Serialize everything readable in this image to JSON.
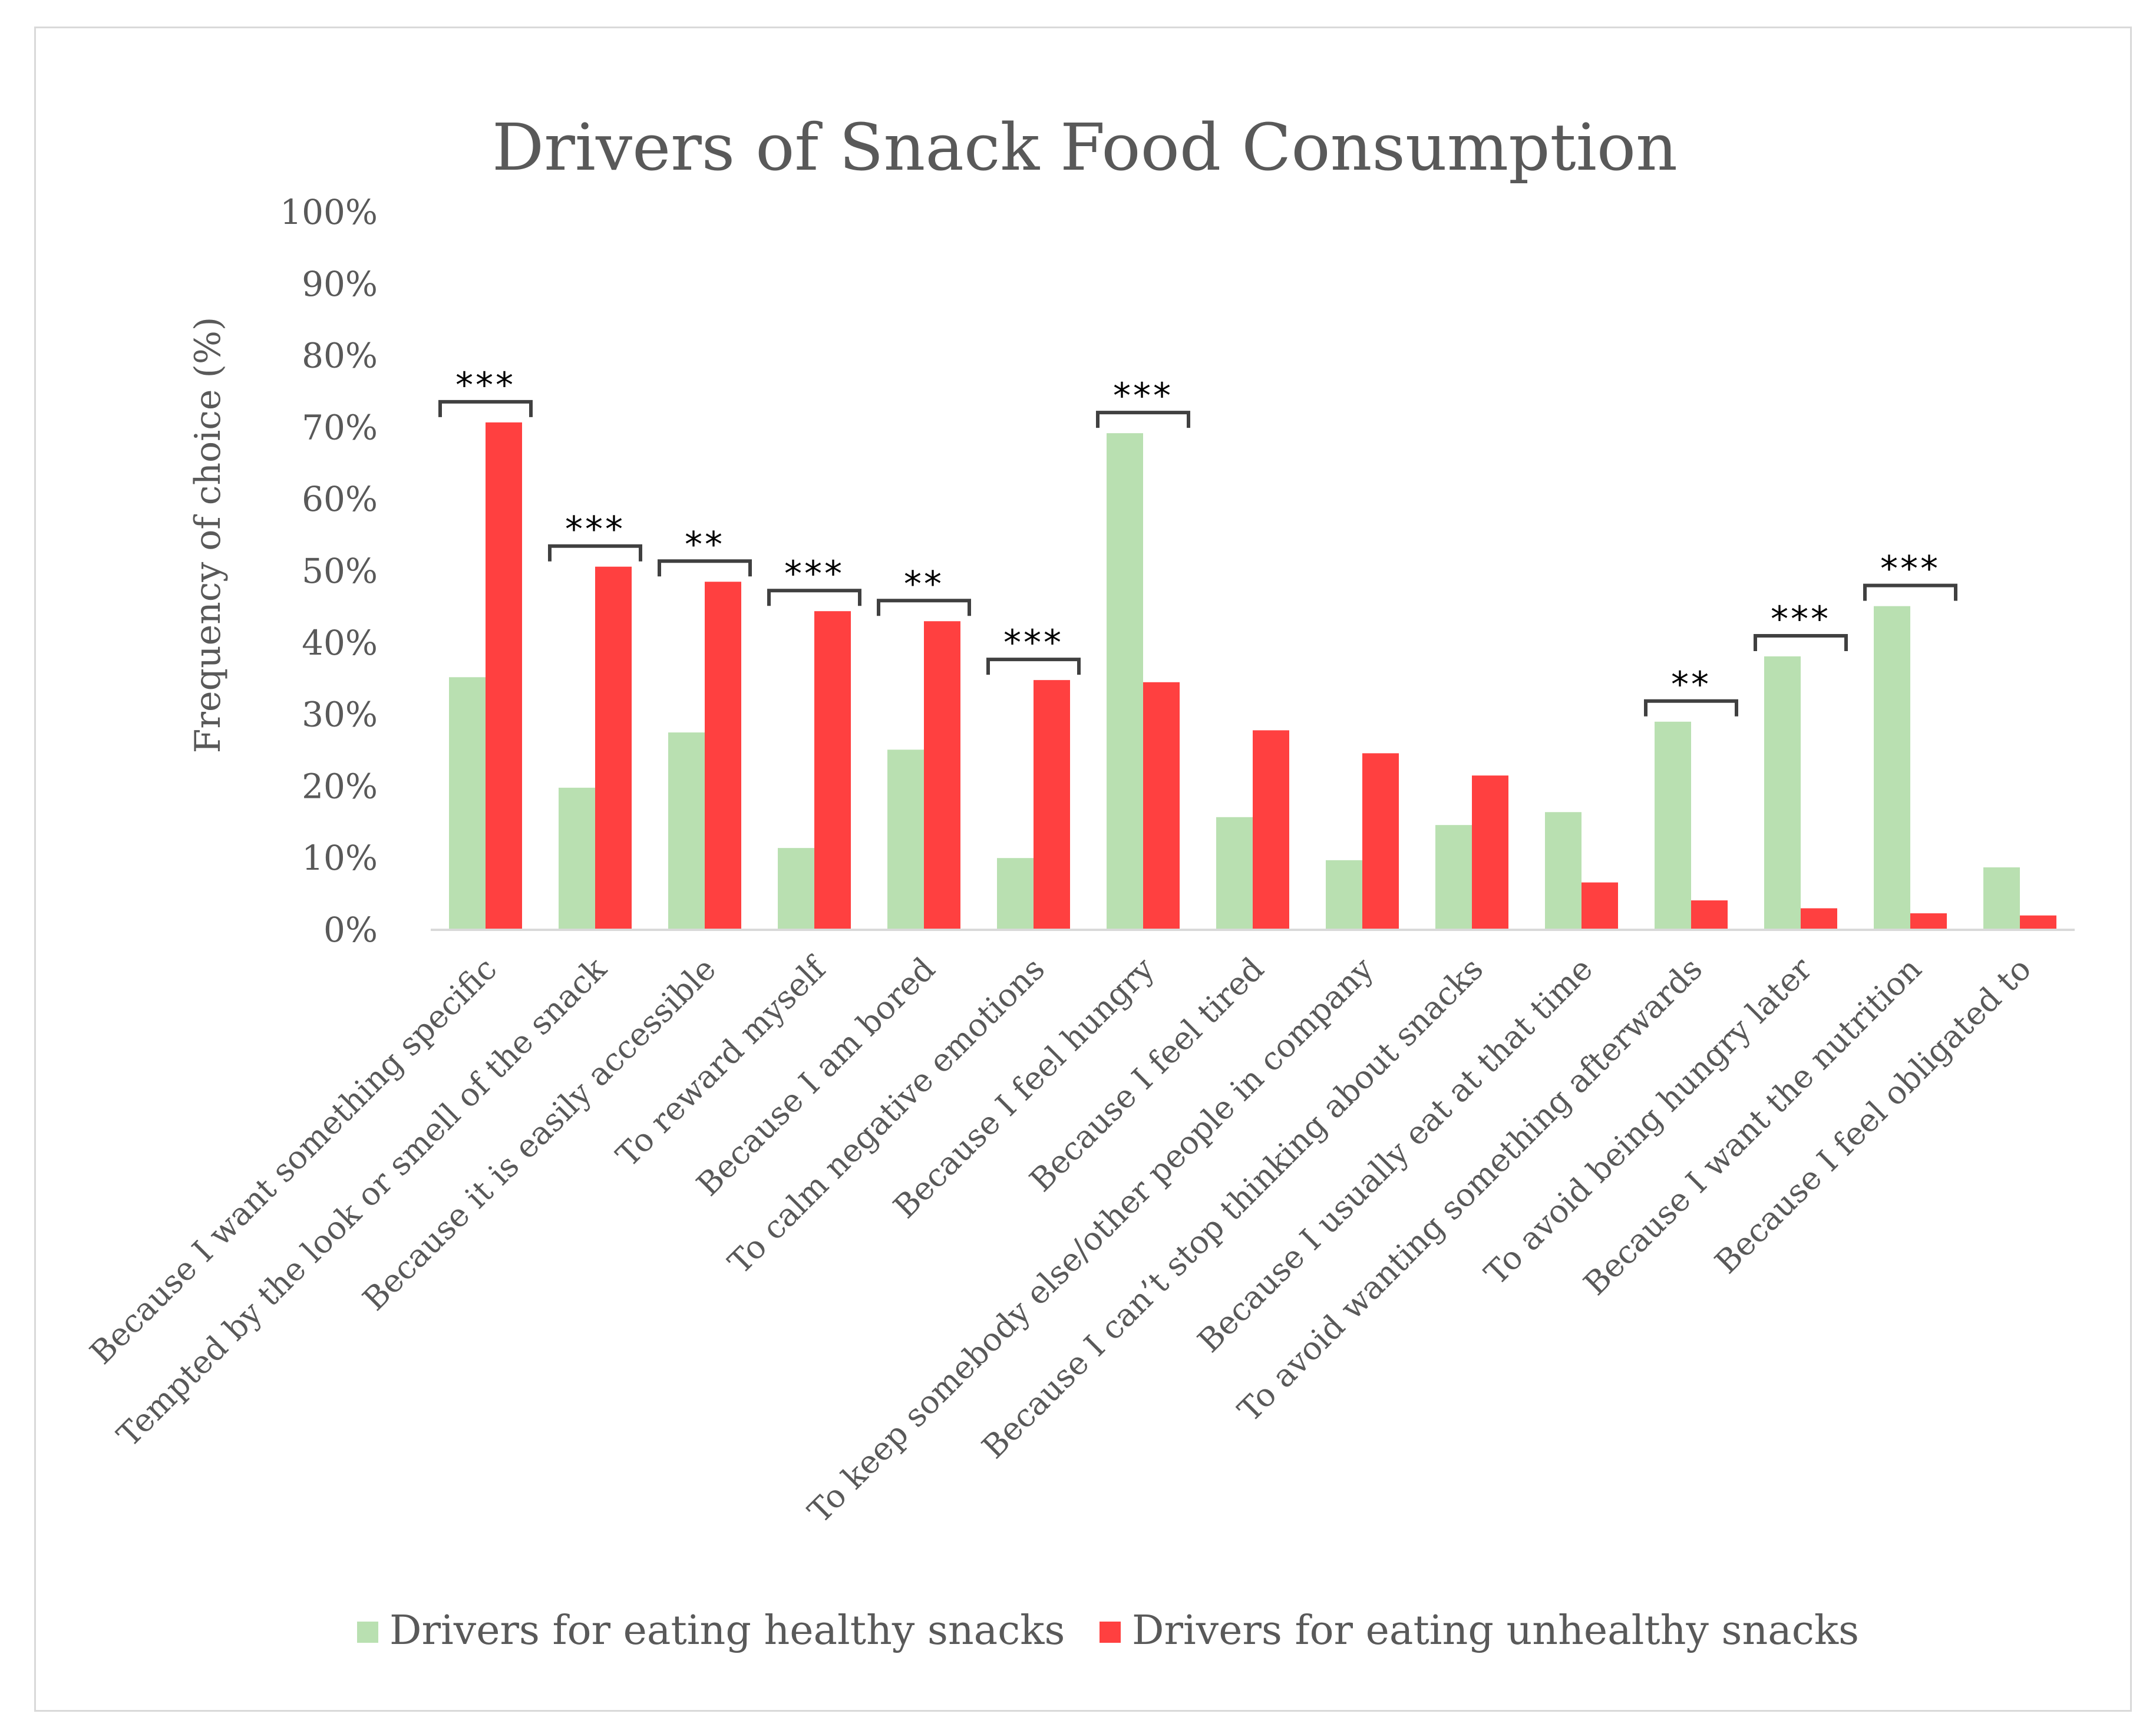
{
  "chart_data": {
    "type": "bar",
    "title": "Drivers of Snack Food Consumption",
    "xlabel": "",
    "ylabel": "Frequency of choice (%)",
    "ylim": [
      0,
      100
    ],
    "y_ticks": [
      "0%",
      "10%",
      "20%",
      "30%",
      "40%",
      "50%",
      "60%",
      "70%",
      "80%",
      "90%",
      "100%"
    ],
    "grid": false,
    "legend_position": "bottom",
    "categories": [
      "Because I want something specific",
      "Tempted by the look or smell of the snack",
      "Because it is easily accessible",
      "To reward myself",
      "Because I am bored",
      "To calm negative emotions",
      "Because I feel hungry",
      "Because I feel tired",
      "To keep somebody else/other people in company",
      "Because I can’t stop thinking about snacks",
      "Because I usually eat at that time",
      "To avoid wanting something afterwards",
      "To avoid being hungry later",
      "Because I want the nutrition",
      "Because I feel obligated to"
    ],
    "series": [
      {
        "name": "Drivers for eating healthy snacks",
        "color": "#b9e0b1",
        "values": [
          35.2,
          19.8,
          27.5,
          11.4,
          25.1,
          10.0,
          69.2,
          15.7,
          9.7,
          14.6,
          16.4,
          29.0,
          38.1,
          45.1,
          8.7
        ]
      },
      {
        "name": "Drivers for eating unhealthy snacks",
        "color": "#ff4040",
        "values": [
          70.7,
          50.6,
          48.5,
          44.4,
          43.0,
          34.8,
          34.5,
          27.8,
          24.6,
          21.5,
          6.6,
          4.1,
          3.0,
          2.3,
          2.0
        ]
      }
    ],
    "significance": [
      "***",
      "***",
      "**",
      "***",
      "**",
      "***",
      "***",
      "",
      "",
      "",
      "",
      "**",
      "***",
      "***",
      ""
    ]
  }
}
